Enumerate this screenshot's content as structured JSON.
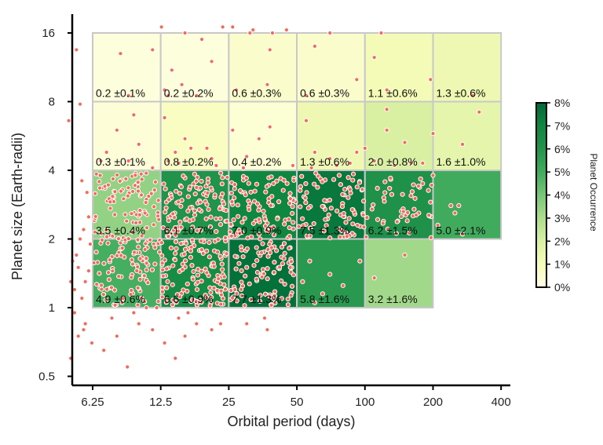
{
  "chart_data": {
    "type": "heatmap",
    "xlabel": "Orbital period (days)",
    "ylabel": "Planet size (Earth-radii)",
    "x_scale": "log2",
    "y_scale": "log2",
    "x_ticks": [
      6.25,
      12.5,
      25,
      50,
      100,
      200,
      400
    ],
    "x_tick_labels": [
      "6.25",
      "12.5",
      "25",
      "50",
      "100",
      "200",
      "400"
    ],
    "y_ticks": [
      0.5,
      1,
      2,
      4,
      8,
      16
    ],
    "y_tick_labels": [
      "0.5",
      "1",
      "2",
      "4",
      "8",
      "16"
    ],
    "x_bins": [
      6.25,
      12.5,
      25,
      50,
      100,
      200,
      400
    ],
    "y_bins": [
      1,
      2,
      4,
      8,
      16
    ],
    "colorbar": {
      "title": "Planet Occurrence",
      "min": 0,
      "max": 8,
      "ticks": [
        "0%",
        "1%",
        "2%",
        "3%",
        "4%",
        "5%",
        "6%",
        "7%",
        "8%"
      ]
    },
    "cells": [
      {
        "p": [
          6.25,
          12.5
        ],
        "r": [
          8,
          16
        ],
        "value": 0.2,
        "label": "0.2 ±0.1%"
      },
      {
        "p": [
          12.5,
          25
        ],
        "r": [
          8,
          16
        ],
        "value": 0.2,
        "label": "0.2 ±0.2%"
      },
      {
        "p": [
          25,
          50
        ],
        "r": [
          8,
          16
        ],
        "value": 0.6,
        "label": "0.6 ±0.3%"
      },
      {
        "p": [
          50,
          100
        ],
        "r": [
          8,
          16
        ],
        "value": 0.6,
        "label": "0.6 ±0.3%"
      },
      {
        "p": [
          100,
          200
        ],
        "r": [
          8,
          16
        ],
        "value": 1.1,
        "label": "1.1 ±0.6%"
      },
      {
        "p": [
          200,
          400
        ],
        "r": [
          8,
          16
        ],
        "value": 1.3,
        "label": "1.3 ±0.6%"
      },
      {
        "p": [
          6.25,
          12.5
        ],
        "r": [
          4,
          8
        ],
        "value": 0.3,
        "label": "0.3 ±0.1%"
      },
      {
        "p": [
          12.5,
          25
        ],
        "r": [
          4,
          8
        ],
        "value": 0.8,
        "label": "0.8 ±0.2%"
      },
      {
        "p": [
          25,
          50
        ],
        "r": [
          4,
          8
        ],
        "value": 0.4,
        "label": "0.4 ±0.2%"
      },
      {
        "p": [
          50,
          100
        ],
        "r": [
          4,
          8
        ],
        "value": 1.3,
        "label": "1.3 ±0.6%"
      },
      {
        "p": [
          100,
          200
        ],
        "r": [
          4,
          8
        ],
        "value": 2.0,
        "label": "2.0 ±0.8%"
      },
      {
        "p": [
          200,
          400
        ],
        "r": [
          4,
          8
        ],
        "value": 1.6,
        "label": "1.6 ±1.0%"
      },
      {
        "p": [
          6.25,
          12.5
        ],
        "r": [
          2,
          4
        ],
        "value": 3.5,
        "label": "3.5 ±0.4%"
      },
      {
        "p": [
          12.5,
          25
        ],
        "r": [
          2,
          4
        ],
        "value": 6.1,
        "label": "6.1 ±0.7%"
      },
      {
        "p": [
          25,
          50
        ],
        "r": [
          2,
          4
        ],
        "value": 7.0,
        "label": "7.0 ±0.9%"
      },
      {
        "p": [
          50,
          100
        ],
        "r": [
          2,
          4
        ],
        "value": 7.5,
        "label": "7.5 ±1.3%"
      },
      {
        "p": [
          100,
          200
        ],
        "r": [
          2,
          4
        ],
        "value": 6.2,
        "label": "6.2 ±1.5%"
      },
      {
        "p": [
          200,
          400
        ],
        "r": [
          2,
          4
        ],
        "value": 5.0,
        "label": "5.0 ±2.1%"
      },
      {
        "p": [
          6.25,
          12.5
        ],
        "r": [
          1,
          2
        ],
        "value": 4.9,
        "label": "4.9 ±0.6%"
      },
      {
        "p": [
          12.5,
          25
        ],
        "r": [
          1,
          2
        ],
        "value": 6.6,
        "label": "6.6 ±0.9%"
      },
      {
        "p": [
          25,
          50
        ],
        "r": [
          1,
          2
        ],
        "value": 7.7,
        "label": "7.7 ±1.3%"
      },
      {
        "p": [
          50,
          100
        ],
        "r": [
          1,
          2
        ],
        "value": 5.8,
        "label": "5.8 ±1.6%"
      },
      {
        "p": [
          100,
          200
        ],
        "r": [
          1,
          2
        ],
        "value": 3.2,
        "label": "3.2 ±1.6%"
      }
    ],
    "points": [
      [
        4.9,
        6.6
      ],
      [
        5.3,
        13.5
      ],
      [
        5.5,
        7.8
      ],
      [
        5.1,
        1.6
      ],
      [
        5.0,
        1.3
      ],
      [
        5.2,
        0.95
      ],
      [
        5.4,
        0.75
      ],
      [
        5.0,
        0.6
      ],
      [
        5.3,
        1.7
      ],
      [
        5.6,
        1.1
      ],
      [
        5.7,
        2.2
      ],
      [
        5.9,
        3.2
      ],
      [
        6.0,
        1.45
      ],
      [
        5.8,
        0.85
      ],
      [
        6.1,
        1.9
      ],
      [
        5.6,
        3.6
      ],
      [
        5.5,
        2.0
      ],
      [
        5.2,
        1.2
      ],
      [
        5.8,
        1.3
      ],
      [
        6.2,
        0.7
      ],
      [
        5.7,
        0.8
      ],
      [
        5.4,
        1.5
      ],
      [
        6.0,
        2.5
      ],
      [
        7.0,
        0.65
      ],
      [
        8.0,
        0.75
      ],
      [
        8.9,
        0.55
      ],
      [
        10.0,
        0.85
      ],
      [
        10.8,
        1.0
      ],
      [
        7.6,
        0.9
      ],
      [
        9.5,
        0.95
      ],
      [
        11.5,
        0.8
      ],
      [
        13.0,
        0.7
      ],
      [
        14.5,
        0.6
      ],
      [
        16.0,
        0.75
      ],
      [
        18.0,
        0.85
      ],
      [
        21.0,
        0.8
      ],
      [
        23.0,
        0.85
      ],
      [
        30.0,
        0.85
      ],
      [
        37.0,
        0.8
      ],
      [
        15.0,
        0.9
      ],
      [
        12.0,
        1.0
      ],
      [
        16.5,
        0.95
      ],
      [
        36.0,
        0.9
      ],
      [
        8.3,
        13.0
      ],
      [
        11.5,
        13.5
      ],
      [
        12.6,
        17.0
      ],
      [
        16.0,
        16.0
      ],
      [
        19.0,
        15.0
      ],
      [
        21.0,
        12.0
      ],
      [
        23.5,
        17.0
      ],
      [
        26.0,
        17.0
      ],
      [
        31.0,
        16.0
      ],
      [
        32.0,
        16.5
      ],
      [
        38.0,
        13.5
      ],
      [
        39.0,
        16.0
      ],
      [
        45.0,
        16.5
      ],
      [
        60.0,
        14.0
      ],
      [
        70.0,
        16.0
      ],
      [
        118.0,
        16.0
      ],
      [
        110.0,
        12.5
      ],
      [
        14.0,
        11.0
      ],
      [
        13.0,
        9.0
      ],
      [
        15.5,
        9.5
      ],
      [
        18.0,
        8.5
      ],
      [
        27.0,
        9.0
      ],
      [
        37.0,
        9.5
      ],
      [
        55.0,
        8.5
      ],
      [
        92.0,
        10.0
      ],
      [
        125.0,
        9.0
      ],
      [
        195.0,
        10.0
      ],
      [
        300.0,
        8.5
      ],
      [
        13.5,
        8.5
      ],
      [
        9.0,
        8.5
      ],
      [
        8.0,
        6.0
      ],
      [
        10.0,
        5.2
      ],
      [
        9.5,
        7.0
      ],
      [
        13.0,
        6.8
      ],
      [
        14.5,
        4.8
      ],
      [
        16.0,
        5.5
      ],
      [
        17.0,
        5.0
      ],
      [
        20.0,
        5.0
      ],
      [
        21.0,
        4.5
      ],
      [
        26.0,
        6.0
      ],
      [
        30.0,
        4.6
      ],
      [
        34.0,
        5.5
      ],
      [
        38.0,
        6.2
      ],
      [
        55.0,
        6.6
      ],
      [
        60.0,
        4.8
      ],
      [
        70.0,
        4.5
      ],
      [
        92.0,
        4.8
      ],
      [
        125.0,
        7.4
      ],
      [
        150.0,
        5.3
      ],
      [
        180.0,
        4.3
      ],
      [
        200.0,
        5.8
      ],
      [
        270.0,
        5.2
      ],
      [
        320.0,
        7.2
      ],
      [
        13.5,
        4.4
      ],
      [
        15.0,
        4.3
      ],
      [
        22.0,
        4.2
      ],
      [
        29.0,
        4.1
      ],
      [
        48.0,
        4.2
      ],
      [
        58.0,
        4.1
      ],
      [
        75.0,
        4.2
      ],
      [
        86.0,
        4.3
      ],
      [
        110.0,
        4.4
      ],
      [
        135.0,
        4.2
      ],
      [
        160.0,
        4.3
      ],
      [
        125.0,
        6.0
      ],
      [
        100.0,
        5.0
      ],
      [
        11.5,
        4.1
      ],
      [
        9.0,
        4.4
      ],
      [
        7.2,
        4.8
      ],
      [
        6.8,
        4.4
      ],
      [
        240.0,
        2.8
      ],
      [
        250.0,
        2.6
      ],
      [
        260.0,
        2.8
      ],
      [
        165.0,
        2.7
      ],
      [
        180.0,
        3.5
      ],
      [
        195.0,
        2.9
      ],
      [
        200.0,
        3.8
      ],
      [
        210.0,
        2.3
      ],
      [
        270.0,
        2.1
      ],
      [
        150.0,
        1.7
      ],
      [
        110.0,
        1.35
      ],
      [
        95.0,
        1.6
      ],
      [
        80.0,
        1.25
      ],
      [
        70.0,
        1.4
      ],
      [
        65.0,
        1.15
      ],
      [
        60.0,
        1.05
      ],
      [
        57.0,
        1.6
      ],
      [
        53.0,
        1.3
      ]
    ],
    "cluster_points": [
      {
        "p": [
          6.3,
          12.4
        ],
        "r": [
          1.02,
          3.9
        ],
        "n": 180
      },
      {
        "p": [
          12.6,
          24.8
        ],
        "r": [
          1.02,
          3.9
        ],
        "n": 240
      },
      {
        "p": [
          25.2,
          49.5
        ],
        "r": [
          1.02,
          3.9
        ],
        "n": 200
      },
      {
        "p": [
          50.5,
          99.0
        ],
        "r": [
          2.02,
          3.9
        ],
        "n": 90
      },
      {
        "p": [
          101.0,
          198.0
        ],
        "r": [
          2.02,
          3.9
        ],
        "n": 45
      }
    ]
  }
}
